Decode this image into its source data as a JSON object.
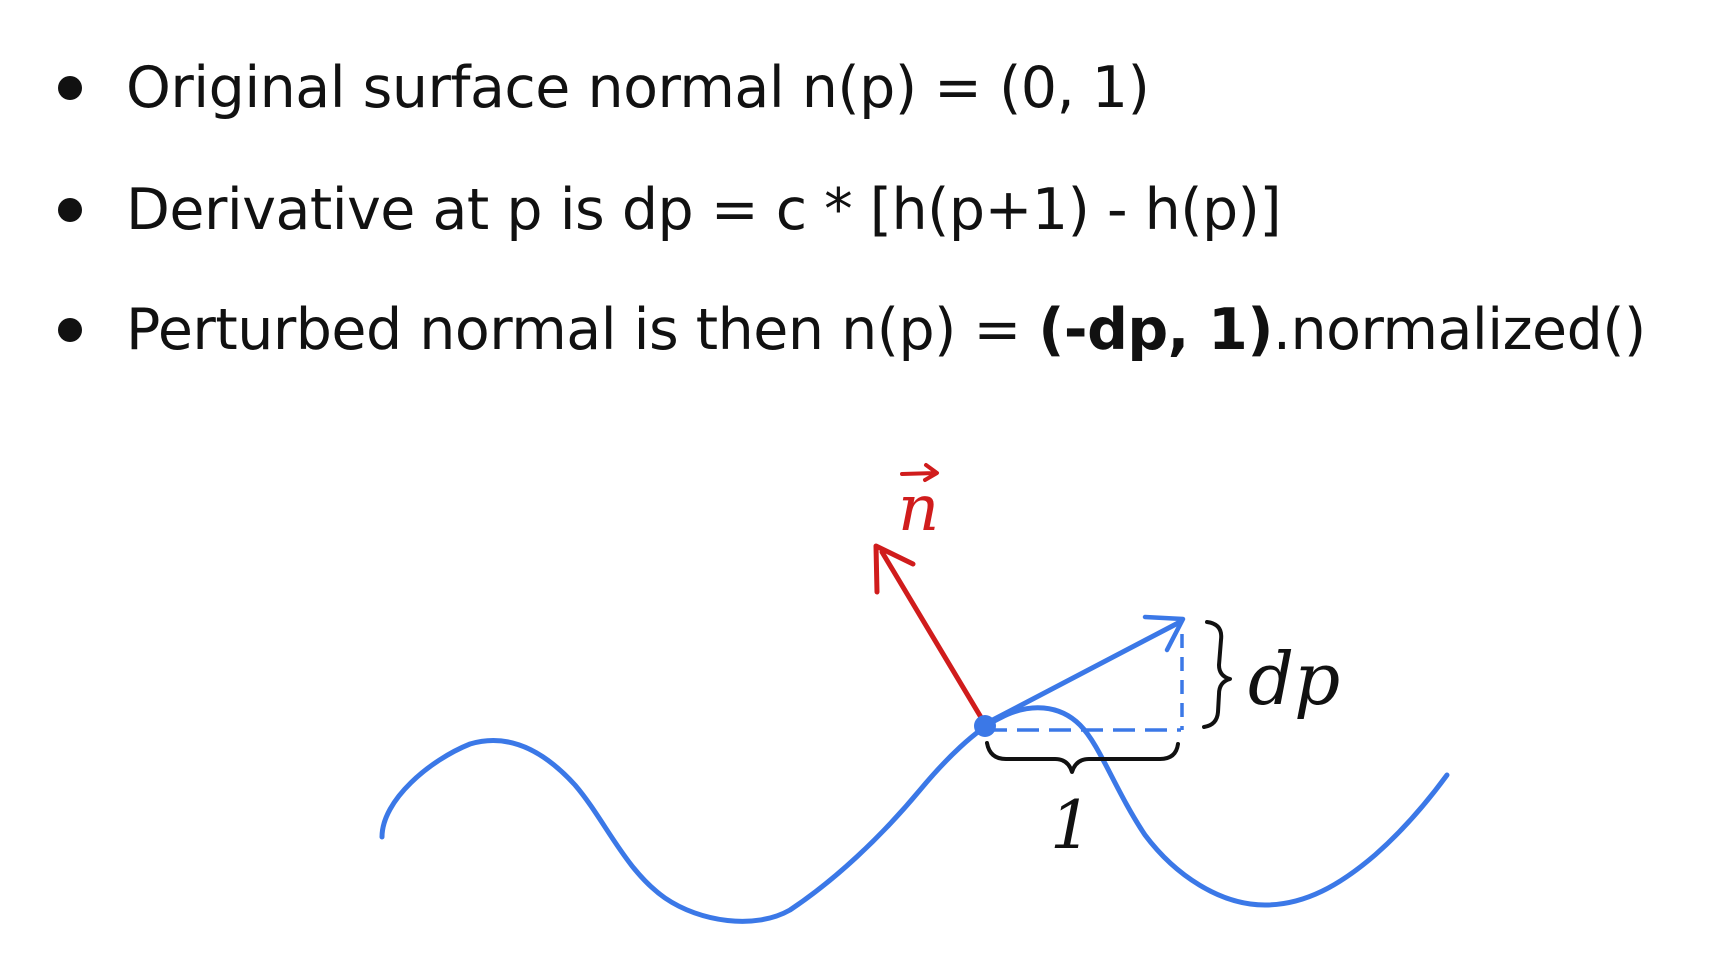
{
  "bullets": [
    {
      "text": "Original surface normal n(p) = (0, 1)"
    },
    {
      "text": "Derivative at p is dp = c * [h(p+1) - h(p)]"
    },
    {
      "prefix": "Perturbed normal is then n(p) = ",
      "bold": "(-dp, 1)",
      "suffix": ".normalized()"
    }
  ],
  "diagram": {
    "normal_label": "n",
    "dp_label": "dp",
    "unit_label": "1",
    "colors": {
      "surface": "#3b78e7",
      "normal": "#d01c1c",
      "annotation": "#111111"
    }
  }
}
